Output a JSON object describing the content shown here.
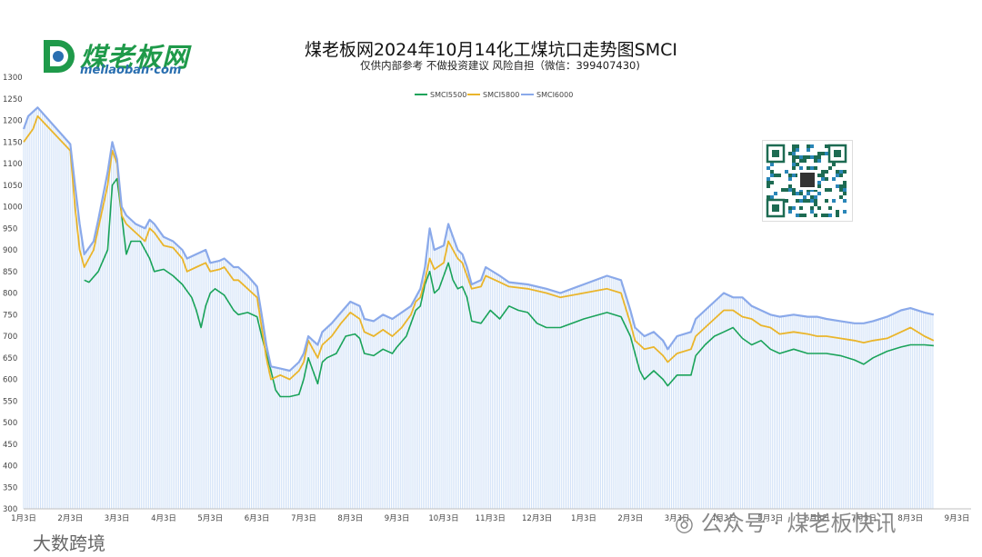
{
  "header": {
    "logo_name": "煤老板网",
    "logo_sub": "meilaoban·com",
    "title": "煤老板网2024年10月14化工煤坑口走势图SMCI",
    "subtitle": "仅供内部参考 不做投资建议 风险自担（微信：399407430)"
  },
  "watermarks": {
    "wechat": "公众号 · 煤老板快讯",
    "corner": "大数跨境"
  },
  "colors": {
    "smci5500": "#1aa35a",
    "smci5800": "#eab52b",
    "smci6000": "#8aa9ea",
    "fill": "#cfe0f7"
  },
  "chart_data": {
    "type": "line",
    "title": "煤老板网2024年10月14化工煤坑口走势图SMCI",
    "xlabel": "",
    "ylabel": "",
    "ylim": [
      300,
      1300
    ],
    "y_ticks": [
      "300",
      "350",
      "400",
      "450",
      "500",
      "550",
      "600",
      "650",
      "700",
      "750",
      "800",
      "850",
      "900",
      "950",
      "1000",
      "1050",
      "1100",
      "1150",
      "1200",
      "1250",
      "1300"
    ],
    "x_ticks": [
      "1月3日",
      "2月3日",
      "3月3日",
      "4月3日",
      "5月3日",
      "6月3日",
      "7月3日",
      "8月3日",
      "9月3日",
      "10月3日",
      "11月3日",
      "12月3日",
      "1月3日",
      "2月3日",
      "3月3日",
      "4月3日",
      "5月3日",
      "6月3日",
      "7月3日",
      "8月3日",
      "9月3日",
      "10月3日"
    ],
    "legend_position": "top",
    "grid": false,
    "series": [
      {
        "name": "SMCI5500",
        "points": [
          [
            1.3,
            830
          ],
          [
            1.4,
            825
          ],
          [
            1.6,
            850
          ],
          [
            1.8,
            900
          ],
          [
            1.9,
            1050
          ],
          [
            2.0,
            1065
          ],
          [
            2.1,
            980
          ],
          [
            2.2,
            890
          ],
          [
            2.3,
            920
          ],
          [
            2.5,
            920
          ],
          [
            2.7,
            880
          ],
          [
            2.8,
            850
          ],
          [
            3.0,
            855
          ],
          [
            3.2,
            840
          ],
          [
            3.4,
            820
          ],
          [
            3.6,
            790
          ],
          [
            3.7,
            760
          ],
          [
            3.8,
            720
          ],
          [
            3.9,
            770
          ],
          [
            4.0,
            800
          ],
          [
            4.1,
            810
          ],
          [
            4.3,
            795
          ],
          [
            4.5,
            760
          ],
          [
            4.6,
            750
          ],
          [
            4.8,
            755
          ],
          [
            5.0,
            745
          ],
          [
            5.1,
            700
          ],
          [
            5.2,
            660
          ],
          [
            5.3,
            620
          ],
          [
            5.4,
            575
          ],
          [
            5.5,
            560
          ],
          [
            5.7,
            560
          ],
          [
            5.9,
            565
          ],
          [
            6.0,
            600
          ],
          [
            6.1,
            650
          ],
          [
            6.2,
            620
          ],
          [
            6.3,
            590
          ],
          [
            6.4,
            640
          ],
          [
            6.5,
            650
          ],
          [
            6.7,
            660
          ],
          [
            6.9,
            700
          ],
          [
            7.1,
            705
          ],
          [
            7.2,
            695
          ],
          [
            7.3,
            660
          ],
          [
            7.5,
            655
          ],
          [
            7.7,
            670
          ],
          [
            7.9,
            660
          ],
          [
            8.0,
            675
          ],
          [
            8.2,
            700
          ],
          [
            8.3,
            730
          ],
          [
            8.4,
            760
          ],
          [
            8.5,
            770
          ],
          [
            8.6,
            820
          ],
          [
            8.7,
            850
          ],
          [
            8.8,
            800
          ],
          [
            8.9,
            810
          ],
          [
            9.0,
            840
          ],
          [
            9.1,
            870
          ],
          [
            9.2,
            830
          ],
          [
            9.3,
            810
          ],
          [
            9.4,
            815
          ],
          [
            9.5,
            790
          ],
          [
            9.6,
            735
          ],
          [
            9.8,
            730
          ],
          [
            10.0,
            760
          ],
          [
            10.2,
            740
          ],
          [
            10.4,
            770
          ],
          [
            10.6,
            760
          ],
          [
            10.8,
            755
          ],
          [
            11.0,
            730
          ],
          [
            11.2,
            720
          ],
          [
            11.5,
            720
          ],
          [
            12.0,
            740
          ],
          [
            12.5,
            755
          ],
          [
            12.8,
            745
          ],
          [
            13.0,
            700
          ],
          [
            13.1,
            660
          ],
          [
            13.2,
            620
          ],
          [
            13.3,
            600
          ],
          [
            13.5,
            620
          ],
          [
            13.7,
            600
          ],
          [
            13.8,
            585
          ],
          [
            14.0,
            610
          ],
          [
            14.3,
            610
          ],
          [
            14.4,
            655
          ],
          [
            14.6,
            680
          ],
          [
            14.8,
            700
          ],
          [
            15.0,
            710
          ],
          [
            15.2,
            720
          ],
          [
            15.4,
            695
          ],
          [
            15.6,
            680
          ],
          [
            15.8,
            690
          ],
          [
            16.0,
            670
          ],
          [
            16.2,
            660
          ],
          [
            16.5,
            670
          ],
          [
            16.8,
            660
          ],
          [
            17.0,
            660
          ],
          [
            17.2,
            660
          ],
          [
            17.5,
            655
          ],
          [
            17.8,
            645
          ],
          [
            18.0,
            635
          ],
          [
            18.2,
            650
          ],
          [
            18.5,
            665
          ],
          [
            18.8,
            675
          ],
          [
            19.0,
            680
          ],
          [
            19.3,
            680
          ],
          [
            19.5,
            678
          ]
        ]
      },
      {
        "name": "SMCI5800",
        "points": [
          [
            0.0,
            1150
          ],
          [
            0.2,
            1180
          ],
          [
            0.3,
            1210
          ],
          [
            1.0,
            1130
          ],
          [
            1.1,
            1000
          ],
          [
            1.2,
            900
          ],
          [
            1.3,
            860
          ],
          [
            1.5,
            900
          ],
          [
            1.6,
            950
          ],
          [
            1.8,
            1050
          ],
          [
            1.9,
            1130
          ],
          [
            2.0,
            1100
          ],
          [
            2.1,
            980
          ],
          [
            2.2,
            960
          ],
          [
            2.4,
            940
          ],
          [
            2.6,
            920
          ],
          [
            2.7,
            950
          ],
          [
            2.8,
            940
          ],
          [
            3.0,
            910
          ],
          [
            3.2,
            905
          ],
          [
            3.4,
            880
          ],
          [
            3.5,
            850
          ],
          [
            3.7,
            860
          ],
          [
            3.9,
            870
          ],
          [
            4.0,
            850
          ],
          [
            4.2,
            855
          ],
          [
            4.3,
            860
          ],
          [
            4.5,
            830
          ],
          [
            4.6,
            830
          ],
          [
            4.8,
            810
          ],
          [
            5.0,
            790
          ],
          [
            5.1,
            720
          ],
          [
            5.2,
            650
          ],
          [
            5.3,
            600
          ],
          [
            5.5,
            610
          ],
          [
            5.7,
            600
          ],
          [
            5.9,
            620
          ],
          [
            6.0,
            640
          ],
          [
            6.1,
            690
          ],
          [
            6.2,
            670
          ],
          [
            6.3,
            650
          ],
          [
            6.4,
            680
          ],
          [
            6.6,
            700
          ],
          [
            6.8,
            730
          ],
          [
            7.0,
            755
          ],
          [
            7.2,
            740
          ],
          [
            7.3,
            710
          ],
          [
            7.5,
            700
          ],
          [
            7.7,
            715
          ],
          [
            7.9,
            700
          ],
          [
            8.1,
            720
          ],
          [
            8.3,
            750
          ],
          [
            8.4,
            780
          ],
          [
            8.5,
            790
          ],
          [
            8.6,
            830
          ],
          [
            8.7,
            880
          ],
          [
            8.8,
            855
          ],
          [
            9.0,
            870
          ],
          [
            9.1,
            920
          ],
          [
            9.2,
            900
          ],
          [
            9.3,
            880
          ],
          [
            9.4,
            870
          ],
          [
            9.5,
            840
          ],
          [
            9.6,
            810
          ],
          [
            9.8,
            815
          ],
          [
            9.9,
            840
          ],
          [
            10.2,
            825
          ],
          [
            10.4,
            815
          ],
          [
            10.8,
            810
          ],
          [
            11.2,
            800
          ],
          [
            11.5,
            790
          ],
          [
            12.0,
            800
          ],
          [
            12.5,
            810
          ],
          [
            12.8,
            800
          ],
          [
            13.0,
            730
          ],
          [
            13.1,
            690
          ],
          [
            13.3,
            670
          ],
          [
            13.5,
            675
          ],
          [
            13.7,
            655
          ],
          [
            13.8,
            640
          ],
          [
            14.0,
            660
          ],
          [
            14.3,
            670
          ],
          [
            14.4,
            700
          ],
          [
            14.6,
            720
          ],
          [
            14.8,
            740
          ],
          [
            15.0,
            760
          ],
          [
            15.2,
            760
          ],
          [
            15.4,
            745
          ],
          [
            15.6,
            740
          ],
          [
            15.8,
            725
          ],
          [
            16.0,
            720
          ],
          [
            16.2,
            705
          ],
          [
            16.5,
            710
          ],
          [
            16.8,
            705
          ],
          [
            17.0,
            700
          ],
          [
            17.2,
            700
          ],
          [
            17.5,
            695
          ],
          [
            17.8,
            690
          ],
          [
            18.0,
            685
          ],
          [
            18.2,
            690
          ],
          [
            18.5,
            695
          ],
          [
            18.8,
            710
          ],
          [
            19.0,
            720
          ],
          [
            19.3,
            700
          ],
          [
            19.5,
            690
          ]
        ]
      },
      {
        "name": "SMCI6000",
        "points": [
          [
            0.0,
            1180
          ],
          [
            0.1,
            1210
          ],
          [
            0.3,
            1230
          ],
          [
            1.0,
            1145
          ],
          [
            1.1,
            1050
          ],
          [
            1.2,
            960
          ],
          [
            1.3,
            890
          ],
          [
            1.5,
            920
          ],
          [
            1.6,
            970
          ],
          [
            1.8,
            1080
          ],
          [
            1.9,
            1150
          ],
          [
            2.0,
            1110
          ],
          [
            2.1,
            1000
          ],
          [
            2.2,
            980
          ],
          [
            2.4,
            960
          ],
          [
            2.6,
            950
          ],
          [
            2.7,
            970
          ],
          [
            2.8,
            960
          ],
          [
            3.0,
            930
          ],
          [
            3.2,
            920
          ],
          [
            3.4,
            900
          ],
          [
            3.5,
            880
          ],
          [
            3.7,
            890
          ],
          [
            3.9,
            900
          ],
          [
            4.0,
            870
          ],
          [
            4.2,
            875
          ],
          [
            4.3,
            880
          ],
          [
            4.5,
            860
          ],
          [
            4.6,
            860
          ],
          [
            4.8,
            840
          ],
          [
            5.0,
            815
          ],
          [
            5.1,
            750
          ],
          [
            5.2,
            680
          ],
          [
            5.3,
            630
          ],
          [
            5.5,
            625
          ],
          [
            5.7,
            620
          ],
          [
            5.9,
            640
          ],
          [
            6.0,
            660
          ],
          [
            6.1,
            700
          ],
          [
            6.2,
            690
          ],
          [
            6.3,
            680
          ],
          [
            6.4,
            710
          ],
          [
            6.6,
            730
          ],
          [
            6.8,
            755
          ],
          [
            7.0,
            780
          ],
          [
            7.2,
            770
          ],
          [
            7.3,
            740
          ],
          [
            7.5,
            735
          ],
          [
            7.7,
            750
          ],
          [
            7.9,
            740
          ],
          [
            8.1,
            755
          ],
          [
            8.3,
            770
          ],
          [
            8.4,
            790
          ],
          [
            8.5,
            810
          ],
          [
            8.6,
            860
          ],
          [
            8.7,
            950
          ],
          [
            8.8,
            900
          ],
          [
            9.0,
            910
          ],
          [
            9.1,
            960
          ],
          [
            9.2,
            930
          ],
          [
            9.3,
            900
          ],
          [
            9.4,
            890
          ],
          [
            9.5,
            860
          ],
          [
            9.6,
            820
          ],
          [
            9.8,
            830
          ],
          [
            9.9,
            860
          ],
          [
            10.2,
            840
          ],
          [
            10.4,
            825
          ],
          [
            10.8,
            820
          ],
          [
            11.2,
            810
          ],
          [
            11.5,
            800
          ],
          [
            12.0,
            820
          ],
          [
            12.5,
            840
          ],
          [
            12.8,
            830
          ],
          [
            13.0,
            760
          ],
          [
            13.1,
            720
          ],
          [
            13.3,
            700
          ],
          [
            13.5,
            710
          ],
          [
            13.7,
            690
          ],
          [
            13.8,
            670
          ],
          [
            14.0,
            700
          ],
          [
            14.3,
            710
          ],
          [
            14.4,
            740
          ],
          [
            14.6,
            760
          ],
          [
            14.8,
            780
          ],
          [
            15.0,
            800
          ],
          [
            15.2,
            790
          ],
          [
            15.4,
            790
          ],
          [
            15.6,
            770
          ],
          [
            15.8,
            760
          ],
          [
            16.0,
            750
          ],
          [
            16.2,
            745
          ],
          [
            16.5,
            750
          ],
          [
            16.8,
            745
          ],
          [
            17.0,
            745
          ],
          [
            17.2,
            740
          ],
          [
            17.5,
            735
          ],
          [
            17.8,
            730
          ],
          [
            18.0,
            730
          ],
          [
            18.2,
            735
          ],
          [
            18.5,
            745
          ],
          [
            18.8,
            760
          ],
          [
            19.0,
            765
          ],
          [
            19.3,
            755
          ],
          [
            19.5,
            750
          ]
        ]
      }
    ]
  }
}
